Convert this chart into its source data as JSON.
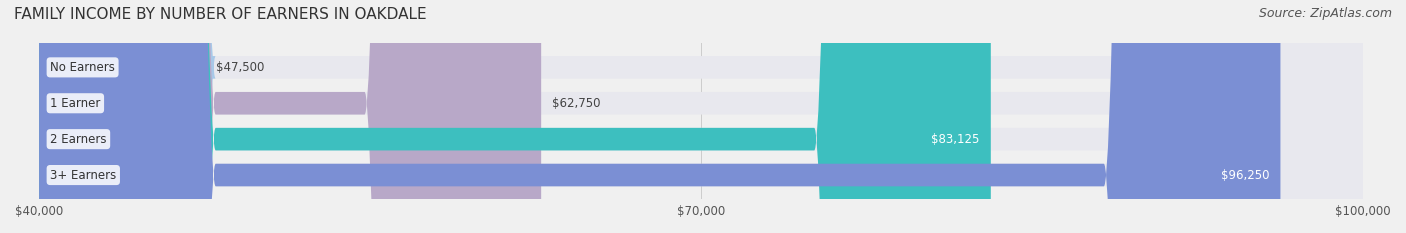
{
  "title": "FAMILY INCOME BY NUMBER OF EARNERS IN OAKDALE",
  "source": "Source: ZipAtlas.com",
  "categories": [
    "No Earners",
    "1 Earner",
    "2 Earners",
    "3+ Earners"
  ],
  "values": [
    47500,
    62750,
    83125,
    96250
  ],
  "bar_colors": [
    "#a8c8e8",
    "#b8a8c8",
    "#3dbfbf",
    "#7b8fd4"
  ],
  "label_colors": [
    "#555555",
    "#555555",
    "#ffffff",
    "#ffffff"
  ],
  "xlim": [
    40000,
    100000
  ],
  "xticks": [
    40000,
    70000,
    100000
  ],
  "xtick_labels": [
    "$40,000",
    "$70,000",
    "$100,000"
  ],
  "bg_color": "#f0f0f0",
  "bar_bg_color": "#e8e8ee",
  "title_fontsize": 11,
  "source_fontsize": 9,
  "label_fontsize": 8.5,
  "value_fontsize": 8.5,
  "tick_fontsize": 8.5
}
